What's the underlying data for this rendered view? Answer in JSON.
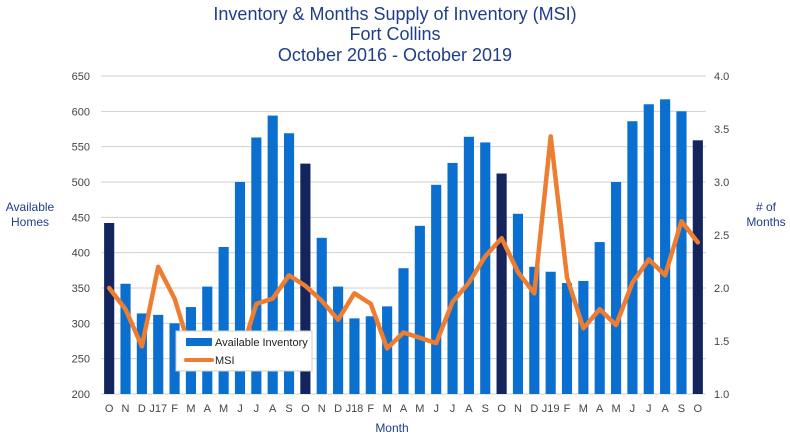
{
  "chart_data": {
    "type": "bar",
    "title_lines": [
      "Inventory & Months Supply of Inventory (MSI)",
      "Fort Collins",
      "October 2016 - October 2019"
    ],
    "xlabel": "Month",
    "ylabel_left": [
      "Available",
      "Homes"
    ],
    "ylabel_right": [
      "# of",
      "Months"
    ],
    "categories": [
      "O",
      "N",
      "D",
      "J17",
      "F",
      "M",
      "A",
      "M",
      "J",
      "J",
      "A",
      "S",
      "O",
      "N",
      "D",
      "J18",
      "F",
      "M",
      "A",
      "M",
      "J",
      "J",
      "A",
      "S",
      "O",
      "N",
      "D",
      "J19",
      "F",
      "M",
      "A",
      "M",
      "J",
      "J",
      "A",
      "S",
      "O"
    ],
    "y_left_ticks": [
      "650",
      "600",
      "550",
      "500",
      "450",
      "400",
      "350",
      "300",
      "250",
      "200"
    ],
    "y_right_ticks": [
      "4.0",
      "3.5",
      "3.0",
      "2.5",
      "2.0",
      "1.5",
      "1.0"
    ],
    "ylim_left": [
      200,
      650
    ],
    "ylim_right": [
      1.0,
      4.0
    ],
    "highlight_indices": [
      0,
      12,
      24,
      36
    ],
    "colors": {
      "bar": "#0a6fcf",
      "bar_highlight": "#13255c",
      "line": "#ed7d31",
      "title": "#1f3e8a",
      "grid": "#d0d0d0"
    },
    "series": [
      {
        "name": "Available Inventory",
        "axis": "left",
        "values": [
          442,
          356,
          314,
          312,
          300,
          323,
          352,
          408,
          500,
          563,
          594,
          569,
          526,
          421,
          352,
          307,
          310,
          324,
          378,
          438,
          496,
          527,
          564,
          556,
          512,
          455,
          380,
          373,
          357,
          360,
          415,
          500,
          586,
          610,
          617,
          600,
          559
        ]
      },
      {
        "name": "MSI",
        "axis": "right",
        "values": [
          2.0,
          1.8,
          1.45,
          2.2,
          1.9,
          1.4,
          1.3,
          1.3,
          1.35,
          1.85,
          1.9,
          2.12,
          2.02,
          1.88,
          1.7,
          1.95,
          1.85,
          1.43,
          1.58,
          1.53,
          1.48,
          1.87,
          2.05,
          2.3,
          2.47,
          2.15,
          1.95,
          3.43,
          2.1,
          1.62,
          1.8,
          1.65,
          2.05,
          2.27,
          2.12,
          2.63,
          2.43
        ]
      }
    ],
    "legend_position": "bottom-left"
  }
}
